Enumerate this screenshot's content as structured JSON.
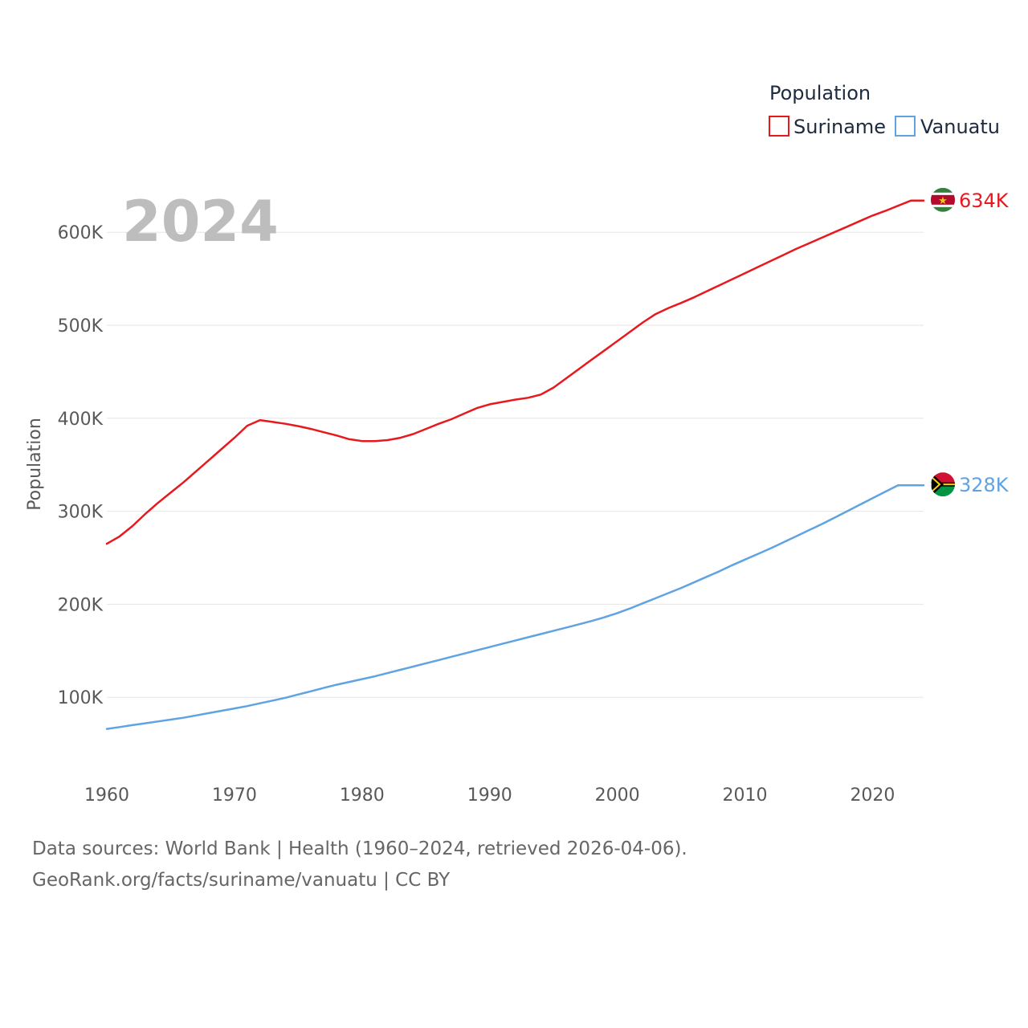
{
  "chart_data": {
    "type": "line",
    "title": "Population",
    "year_label": "2024",
    "xlabel": "",
    "ylabel": "Population",
    "xlim": [
      1960,
      2024
    ],
    "ylim": [
      0,
      650000
    ],
    "x_ticks": [
      1960,
      1970,
      1980,
      1990,
      2000,
      2010,
      2020
    ],
    "x_tick_labels": [
      "1960",
      "1970",
      "1980",
      "1990",
      "2000",
      "2010",
      "2020"
    ],
    "y_ticks": [
      100000,
      200000,
      300000,
      400000,
      500000,
      600000
    ],
    "y_tick_labels": [
      "100K",
      "200K",
      "300K",
      "400K",
      "500K",
      "600K"
    ],
    "grid": true,
    "legend_position": "top-right",
    "x": [
      1960,
      1961,
      1962,
      1963,
      1964,
      1965,
      1966,
      1967,
      1968,
      1969,
      1970,
      1971,
      1972,
      1973,
      1974,
      1975,
      1976,
      1977,
      1978,
      1979,
      1980,
      1981,
      1982,
      1983,
      1984,
      1985,
      1986,
      1987,
      1988,
      1989,
      1990,
      1991,
      1992,
      1993,
      1994,
      1995,
      1996,
      1997,
      1998,
      1999,
      2000,
      2001,
      2002,
      2003,
      2004,
      2005,
      2006,
      2007,
      2008,
      2009,
      2010,
      2011,
      2012,
      2013,
      2014,
      2015,
      2016,
      2017,
      2018,
      2019,
      2020,
      2021,
      2022,
      2023,
      2024
    ],
    "series": [
      {
        "name": "Suriname",
        "color": "#e8191e",
        "end_label": "634K",
        "flag": "suriname-flag",
        "values": [
          265000,
          273000,
          284000,
          297000,
          309000,
          320000,
          331000,
          343000,
          355000,
          367000,
          379000,
          392000,
          398000,
          396000,
          394000,
          391500,
          388500,
          385000,
          381500,
          377500,
          375500,
          375500,
          376500,
          379000,
          383000,
          388500,
          394000,
          399000,
          405000,
          411000,
          415000,
          417500,
          420000,
          422000,
          425500,
          433000,
          443000,
          453000,
          463000,
          473000,
          483000,
          493000,
          503000,
          512000,
          518500,
          524000,
          530000,
          536500,
          543000,
          549500,
          556000,
          562500,
          569000,
          575500,
          582000,
          588000,
          594000,
          600000,
          606000,
          612000,
          618000,
          623000,
          628500,
          634000,
          634000
        ]
      },
      {
        "name": "Vanuatu",
        "color": "#5fa3e3",
        "end_label": "328K",
        "flag": "vanuatu-flag",
        "values": [
          66000,
          68000,
          70000,
          72000,
          74000,
          76000,
          78000,
          80500,
          83000,
          85500,
          88000,
          90500,
          93500,
          96500,
          99500,
          103000,
          106500,
          110000,
          113500,
          116500,
          119500,
          122500,
          126000,
          129500,
          133000,
          136500,
          140000,
          143500,
          147000,
          150500,
          154000,
          157500,
          161000,
          164500,
          168000,
          171500,
          175000,
          178500,
          182000,
          186000,
          190500,
          195500,
          201000,
          206500,
          212000,
          217500,
          223500,
          229500,
          235500,
          242000,
          248000,
          254000,
          260000,
          266500,
          273000,
          279500,
          286000,
          293000,
          300000,
          307000,
          314000,
          321000,
          328000,
          328000,
          328000
        ]
      }
    ]
  },
  "footer": {
    "line1": "Data sources: World Bank | Health (1960–2024, retrieved 2026-04-06).",
    "line2": "GeoRank.org/facts/suriname/vanuatu | CC BY"
  }
}
